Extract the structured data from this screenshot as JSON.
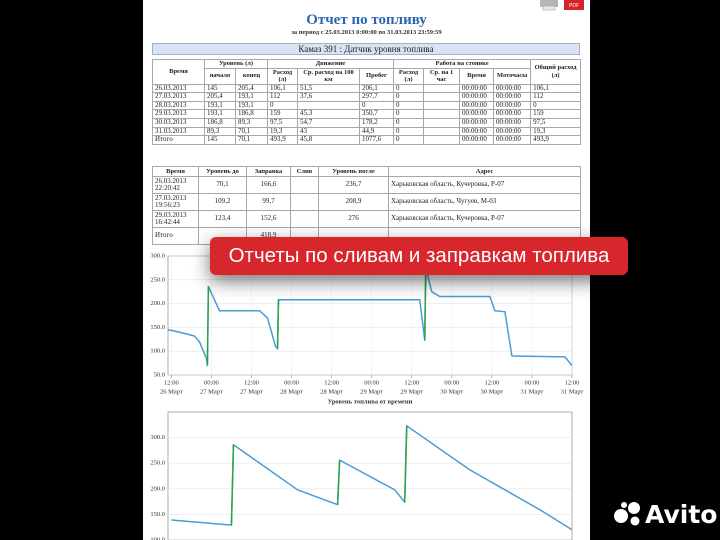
{
  "header": {
    "title": "Отчет по топливу",
    "period": "за период с 25.03.2013 0:00:00 по 31.03.2013 23:59:59",
    "vehicle": "Камаз 391 : Датчик уровня топлива",
    "pdf": "PDF"
  },
  "summary_table": {
    "group_headers": [
      "Уровень (л)",
      "Движение",
      "Работа на стоянке"
    ],
    "columns": [
      "Время",
      "начало",
      "конец",
      "Расход (л)",
      "Ср. расход на 100 км",
      "Пробег",
      "Расход (л)",
      "Ср. на 1 час",
      "Время",
      "Моточасы",
      "Общий расход (л)"
    ],
    "rows": [
      [
        "26.03.2013",
        "145",
        "205,4",
        "106,1",
        "51,5",
        "206,1",
        "0",
        null,
        "00:00:00",
        "00:00:00",
        "106,1"
      ],
      [
        "27.03.2013",
        "205,4",
        "193,1",
        "112",
        "37,6",
        "297,7",
        "0",
        null,
        "00:00:00",
        "00:00:00",
        "112"
      ],
      [
        "28.03.2013",
        "193,1",
        "193,1",
        "0",
        null,
        "0",
        "0",
        null,
        "00:00:00",
        "00:00:00",
        "0"
      ],
      [
        "29.03.2013",
        "193,1",
        "186,8",
        "159",
        "45,3",
        "350,7",
        "0",
        null,
        "00:00:00",
        "00:00:00",
        "159"
      ],
      [
        "30.03.2013",
        "186,8",
        "89,3",
        "97,5",
        "54,7",
        "178,2",
        "0",
        null,
        "00:00:00",
        "00:00:00",
        "97,5"
      ],
      [
        "31.03.2013",
        "89,3",
        "70,1",
        "19,3",
        "43",
        "44,9",
        "0",
        null,
        "00:00:00",
        "00:00:00",
        "19,3"
      ],
      [
        "Итого",
        "145",
        "70,1",
        "493,9",
        "45,8",
        "1077,6",
        "0",
        null,
        "00:00:00",
        "00:00:00",
        "493,9"
      ]
    ]
  },
  "events_table": {
    "columns": [
      "Время",
      "Уровень до",
      "Заправка",
      "Слив",
      "Уровень после",
      "Адрес"
    ],
    "rows": [
      [
        "26.03.2013 22:20:42",
        "70,1",
        "166,6",
        null,
        "236,7",
        "Харьковская область, Кучеровка, Р-07"
      ],
      [
        "27.03.2013 19:56:23",
        "109,2",
        "99,7",
        null,
        "208,9",
        "Харьковская область, Чугуев, М-03"
      ],
      [
        "29.03.2013 16:42:44",
        "123,4",
        "152,6",
        null,
        "276",
        "Харьковская область, Кучеровка, Р-07"
      ],
      [
        "Итого",
        null,
        "418,9",
        null,
        null,
        null
      ]
    ]
  },
  "chart_data": [
    {
      "type": "line",
      "x_label": "Уровень топлива от времени",
      "x": [
        11,
        14.4,
        18.9,
        20.4,
        22.5,
        22.8,
        23.1,
        26.4,
        38.4,
        40.8,
        43.2,
        43.8,
        44.1,
        86.4,
        87.9,
        88.2,
        90,
        92.4,
        107.4,
        108.9,
        111.9,
        114,
        129.9,
        132
      ],
      "series": [
        {
          "color": "#4b9cd3",
          "values": [
            145,
            140,
            132,
            120,
            85,
            70,
            236,
            185,
            185,
            170,
            110,
            105,
            208,
            208,
            123,
            276,
            225,
            215,
            215,
            185,
            183,
            90,
            88,
            70
          ]
        },
        {
          "color": "#2ca444",
          "values": [
            null,
            null,
            null,
            null,
            null,
            70,
            236,
            null,
            null,
            null,
            null,
            105,
            208,
            null,
            123,
            276,
            null,
            null,
            null,
            null,
            null,
            null,
            null,
            null
          ]
        }
      ],
      "xlim": [
        11,
        132
      ],
      "ylim": [
        50,
        300
      ],
      "yticks": [
        {
          "value": 50,
          "label": "50.0"
        },
        {
          "value": 100,
          "label": "100.0"
        },
        {
          "value": 150,
          "label": "150.0"
        },
        {
          "value": 200,
          "label": "200.0"
        },
        {
          "value": 250,
          "label": "250.0"
        },
        {
          "value": 300,
          "label": "300.0"
        }
      ],
      "xticks": [
        {
          "value": 12,
          "label": [
            "12:00",
            "26 Март"
          ]
        },
        {
          "value": 24,
          "label": [
            "00:00",
            "27 Март"
          ]
        },
        {
          "value": 36,
          "label": [
            "12:00",
            "27 Март"
          ]
        },
        {
          "value": 48,
          "label": [
            "00:00",
            "28 Март"
          ]
        },
        {
          "value": 60,
          "label": [
            "12:00",
            "28 Март"
          ]
        },
        {
          "value": 72,
          "label": [
            "00:00",
            "29 Март"
          ]
        },
        {
          "value": 84,
          "label": [
            "12:00",
            "29 Март"
          ]
        },
        {
          "value": 96,
          "label": [
            "00:00",
            "30 Март"
          ]
        },
        {
          "value": 108,
          "label": [
            "12:00",
            "30 Март"
          ]
        },
        {
          "value": 120,
          "label": [
            "00:00",
            "31 Март"
          ]
        },
        {
          "value": 132,
          "label": [
            "12:00",
            "31 Март"
          ]
        }
      ],
      "grid": true
    },
    {
      "type": "line",
      "x": [
        12,
        30,
        30.6,
        49.8,
        61.8,
        62.4,
        78.9,
        81.9,
        82.5,
        101.4,
        122.4,
        132
      ],
      "series": [
        {
          "color": "#4b9cd3",
          "values": [
            139,
            129,
            286,
            198,
            169,
            256,
            198,
            174,
            323,
            237,
            159,
            120
          ]
        },
        {
          "color": "#2ca444",
          "values": [
            null,
            129,
            286,
            null,
            169,
            256,
            null,
            174,
            323,
            null,
            null,
            null
          ]
        }
      ],
      "xlim": [
        11,
        132
      ],
      "ylim": [
        100,
        350
      ],
      "yticks": [
        {
          "value": 100,
          "label": "100.0"
        },
        {
          "value": 150,
          "label": "150.0"
        },
        {
          "value": 200,
          "label": "200.0"
        },
        {
          "value": 250,
          "label": "250.0"
        },
        {
          "value": 300,
          "label": "300.0"
        }
      ],
      "grid": true
    }
  ],
  "banner": {
    "text": "Отчеты по сливам и заправкам топлива"
  },
  "watermark": {
    "text": "Avito"
  }
}
